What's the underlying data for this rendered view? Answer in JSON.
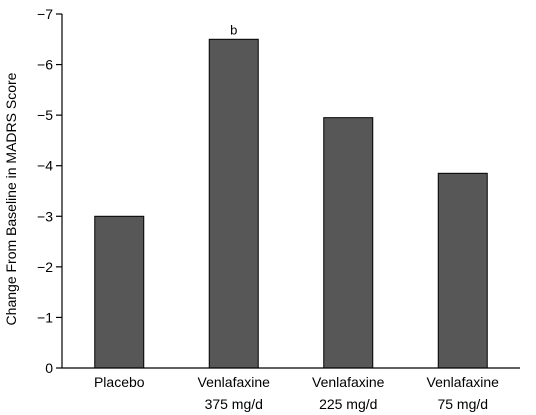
{
  "chart_data": {
    "type": "bar",
    "ylabel": "Change From Baseline in MADRS Score",
    "categories": [
      [
        "Placebo"
      ],
      [
        "Venlafaxine",
        "375 mg/d"
      ],
      [
        "Venlafaxine",
        "225 mg/d"
      ],
      [
        "Venlafaxine",
        "75 mg/d"
      ]
    ],
    "values": [
      -3.0,
      -6.5,
      -4.95,
      -3.85
    ],
    "annotations": [
      "",
      "b",
      "",
      ""
    ],
    "y_ticks": [
      0,
      -1,
      -2,
      -3,
      -4,
      -5,
      -6,
      -7
    ],
    "y_tick_labels": [
      "0",
      "−1",
      "−2",
      "−3",
      "−4",
      "−5",
      "−6",
      "−7"
    ],
    "ylim": [
      0,
      -7
    ],
    "y_axis_inverted": true,
    "bar_color": "#575757",
    "grid": false
  }
}
